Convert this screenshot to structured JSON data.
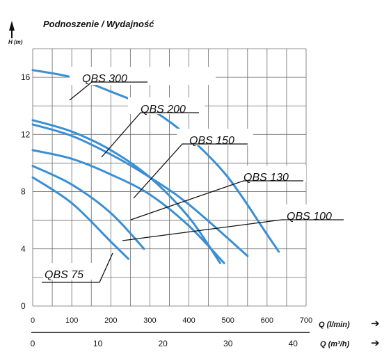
{
  "chart_data": {
    "type": "line",
    "title": "Podnoszenie / Wydajność",
    "ylabel": "H (m)",
    "xlabel": "Q (l/min)",
    "xlabel_secondary": "Q (m³/h)",
    "xlim": [
      0,
      700
    ],
    "ylim": [
      0,
      18
    ],
    "x_ticks": [
      "0",
      "100",
      "200",
      "300",
      "400",
      "500",
      "600",
      "700"
    ],
    "x2_ticks": [
      "0",
      "10",
      "20",
      "30",
      "40"
    ],
    "y_ticks": [
      "0",
      "4",
      "8",
      "12",
      "16"
    ],
    "grid": true,
    "series": [
      {
        "name": "QBS 300",
        "x": [
          0,
          100,
          200,
          300,
          400,
          500,
          600,
          630
        ],
        "y": [
          16.5,
          16.0,
          15.0,
          13.8,
          11.8,
          9.0,
          5.0,
          3.8
        ]
      },
      {
        "name": "QBS 200",
        "x": [
          0,
          100,
          200,
          300,
          400,
          480
        ],
        "y": [
          13.0,
          12.2,
          10.9,
          9.0,
          6.2,
          3.0
        ]
      },
      {
        "name": "QBS 150",
        "x": [
          0,
          100,
          200,
          300,
          400,
          550
        ],
        "y": [
          12.7,
          11.9,
          10.6,
          9.0,
          7.1,
          3.5
        ]
      },
      {
        "name": "QBS 130",
        "x": [
          0,
          100,
          200,
          300,
          400,
          490
        ],
        "y": [
          10.9,
          10.3,
          9.2,
          7.8,
          5.6,
          3.0
        ]
      },
      {
        "name": "QBS 100",
        "x": [
          0,
          100,
          200,
          285
        ],
        "y": [
          9.8,
          8.5,
          6.5,
          4.0
        ]
      },
      {
        "name": "QBS 75",
        "x": [
          0,
          100,
          200,
          245
        ],
        "y": [
          9.0,
          7.2,
          4.5,
          3.3
        ]
      }
    ],
    "line_color": "#3a8fd4",
    "arrow_glyph": "➔"
  }
}
